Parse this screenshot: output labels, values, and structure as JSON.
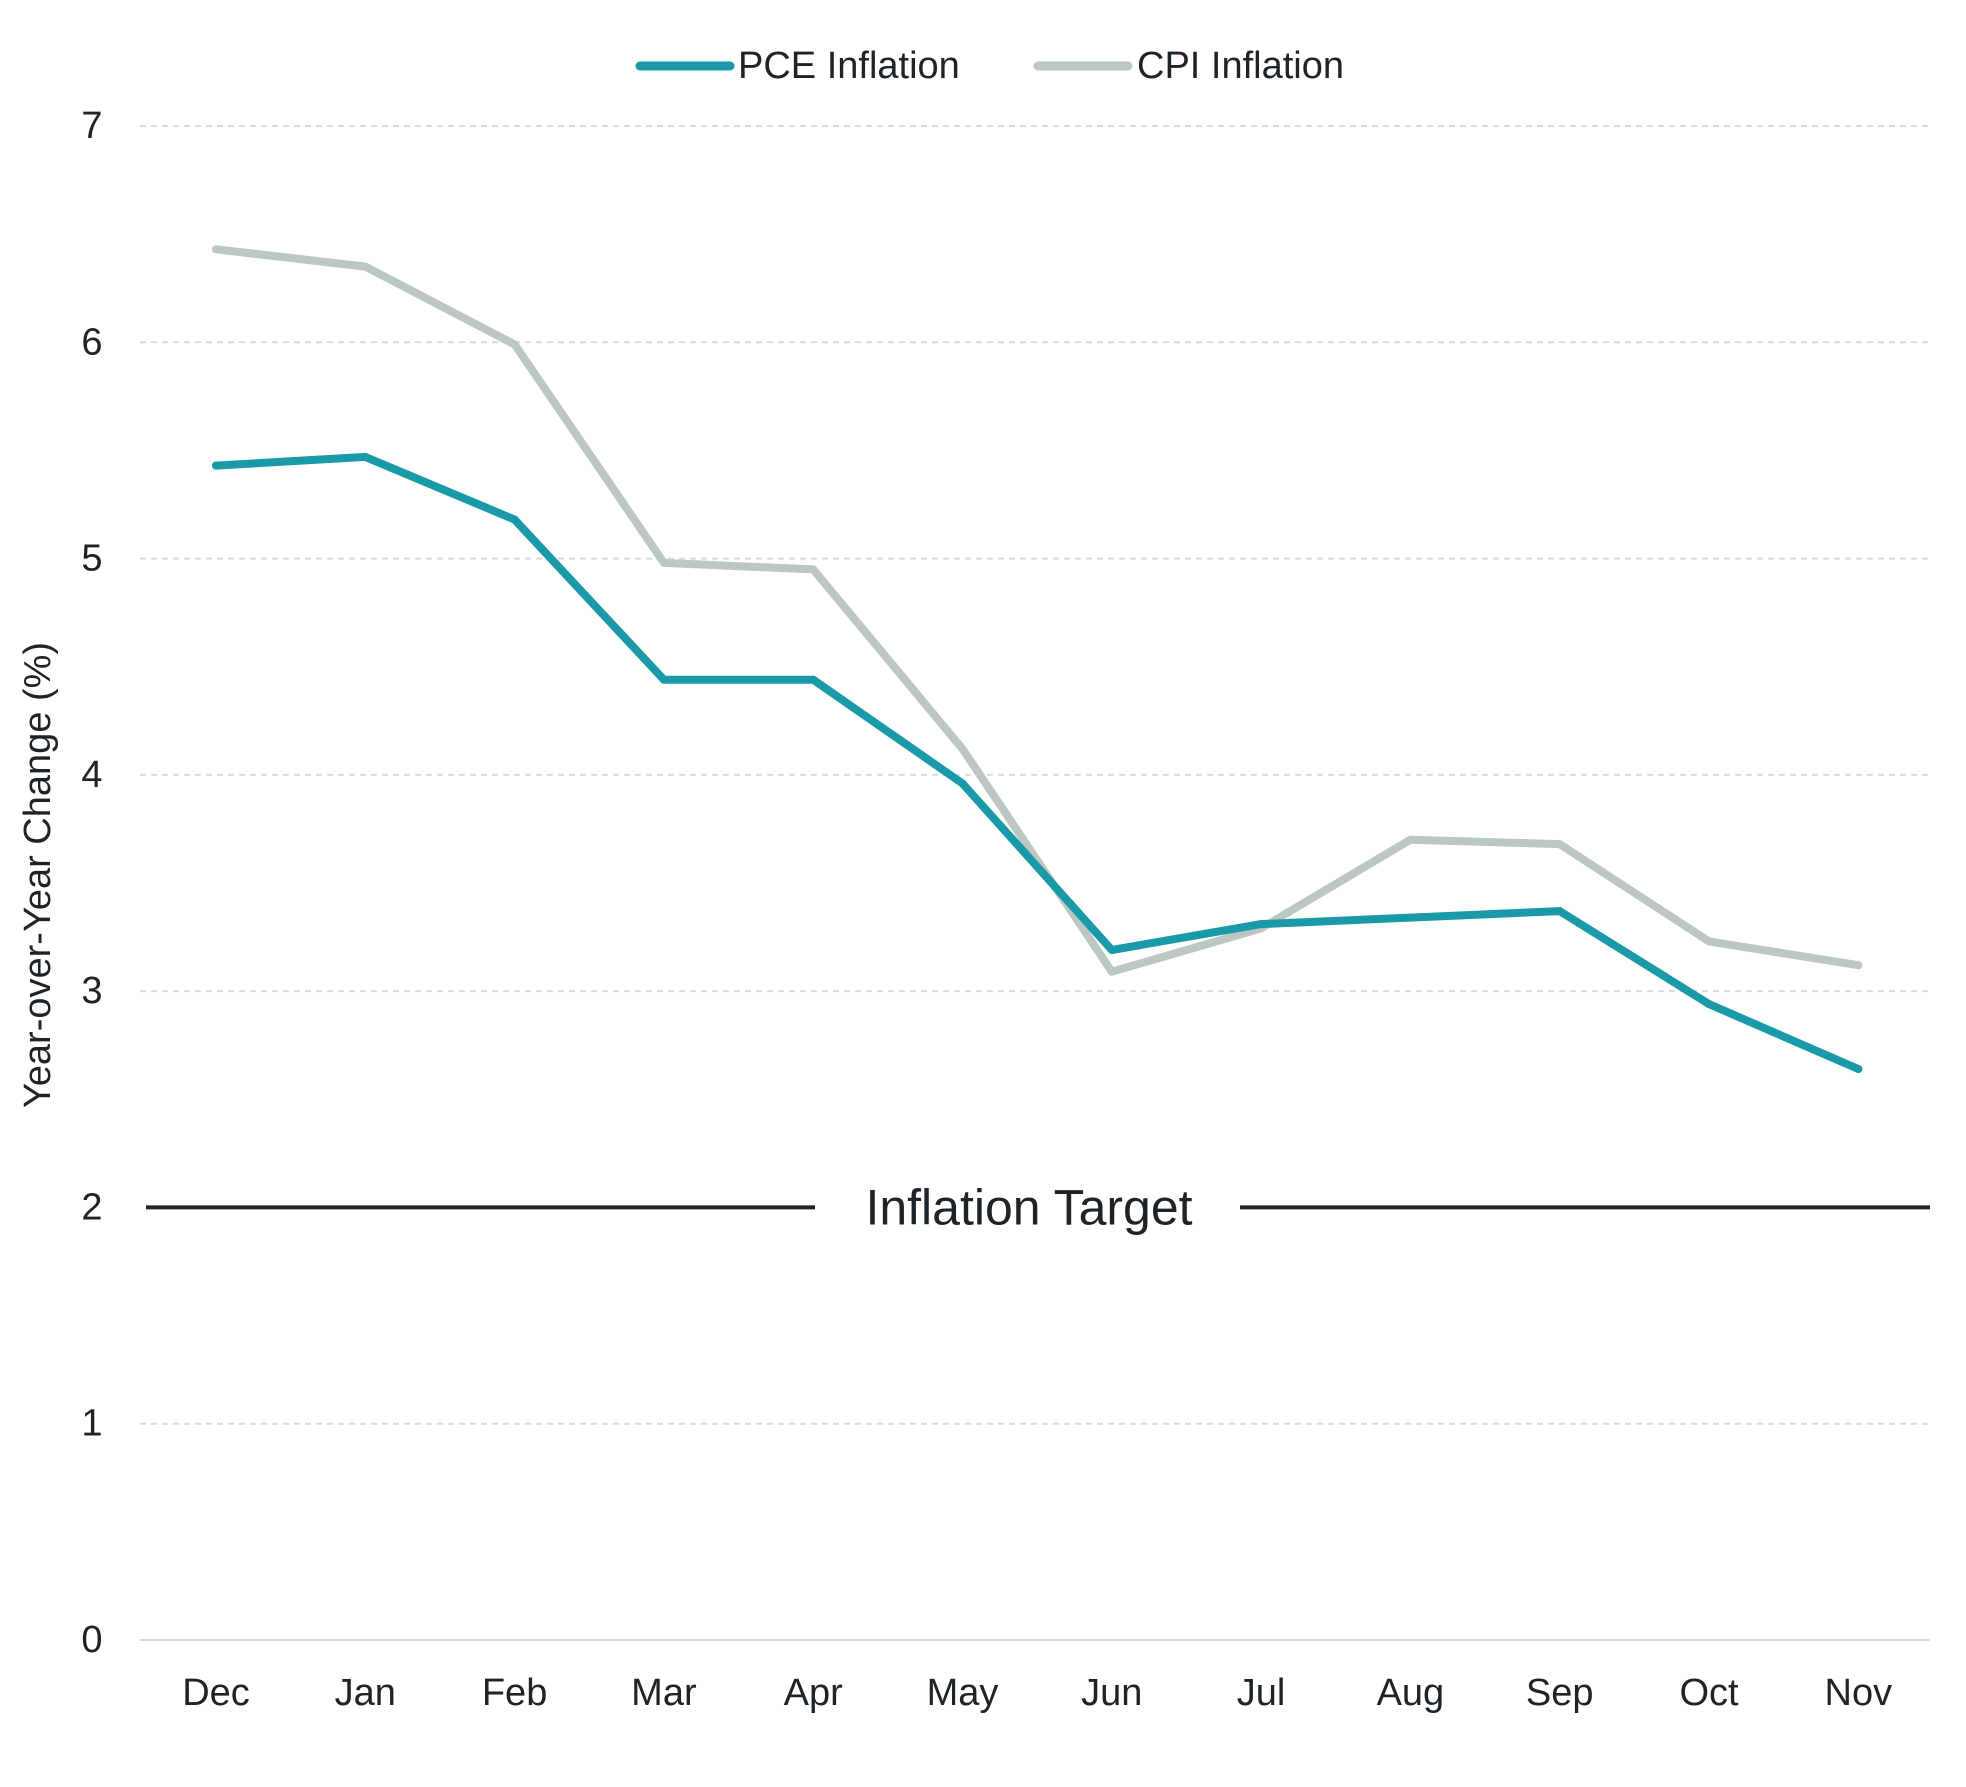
{
  "chart_data": {
    "type": "line",
    "categories": [
      "Dec",
      "Jan",
      "Feb",
      "Mar",
      "Apr",
      "May",
      "Jun",
      "Jul",
      "Aug",
      "Sep",
      "Oct",
      "Nov"
    ],
    "series": [
      {
        "name": "PCE Inflation",
        "color": "#1a99a8",
        "values": [
          5.43,
          5.47,
          5.18,
          4.44,
          4.44,
          3.96,
          3.19,
          3.31,
          3.34,
          3.37,
          2.94,
          2.64
        ]
      },
      {
        "name": "CPI Inflation",
        "color": "#bcc7c1",
        "values": [
          6.43,
          6.35,
          5.99,
          4.98,
          4.95,
          4.12,
          3.09,
          3.29,
          3.7,
          3.68,
          3.23,
          3.12
        ]
      }
    ],
    "ylabel": "Year-over-Year Change (%)",
    "ylim": [
      0,
      7
    ],
    "yticks": [
      0,
      1,
      2,
      3,
      4,
      5,
      6,
      7
    ],
    "grid": true,
    "legend": "top-center",
    "reference_line": {
      "value": 2,
      "label": "Inflation Target",
      "color": "#1e2328"
    }
  }
}
